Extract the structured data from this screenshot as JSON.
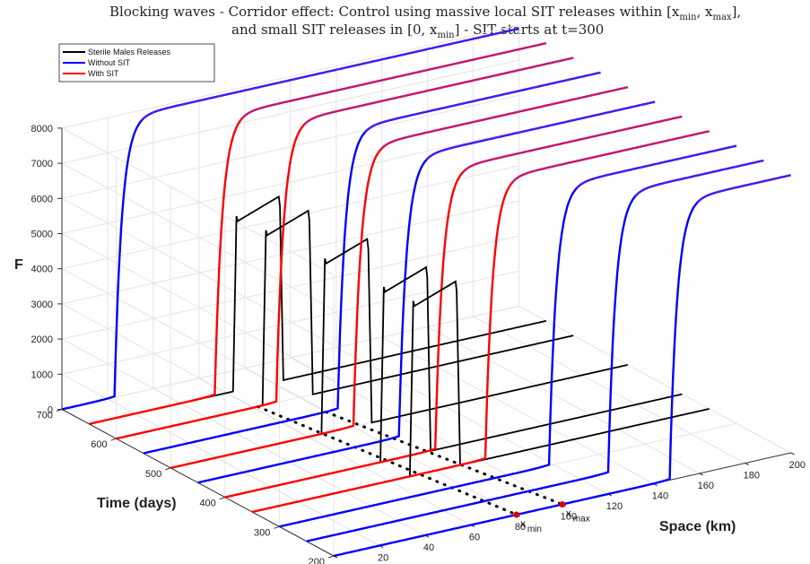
{
  "chart_data": {
    "type": "line",
    "title_line1": "Blocking waves - Corridor effect: Control using massive local SIT releases within [x",
    "title_line1_sub1": "min",
    "title_line1_mid": ", x",
    "title_line1_sub2": "max",
    "title_line1_end": "],",
    "title_line2": "and small SIT releases in [0, x",
    "title_line2_sub": "min",
    "title_line2_end": "] - SIT starts at t=300",
    "xlabel": "Space (km)",
    "ylabel": "Time (days)",
    "zlabel": "F",
    "xlim": [
      0,
      200
    ],
    "ylim": [
      200,
      700
    ],
    "zlim": [
      0,
      8000
    ],
    "xticks": [
      "0",
      "20",
      "40",
      "60",
      "80",
      "100",
      "120",
      "140",
      "160",
      "180",
      "200"
    ],
    "yticks": [
      "200",
      "300",
      "400",
      "500",
      "600",
      "700"
    ],
    "zticks": [
      "0",
      "1000",
      "2000",
      "3000",
      "4000",
      "5000",
      "6000",
      "7000",
      "8000"
    ],
    "legend": {
      "position": "top-left",
      "entries": [
        {
          "name": "Sterile Males Releases",
          "color": "#000000"
        },
        {
          "name": "Without SIT",
          "color": "#0000ff"
        },
        {
          "name": "With SIT",
          "color": "#ff0000"
        }
      ]
    },
    "markers": [
      {
        "label": "x",
        "sub": "min",
        "x": 80
      },
      {
        "label": "x",
        "sub": "max",
        "x": 100
      }
    ],
    "snapshots": [
      {
        "t": 700,
        "front_x": 23,
        "curve": "Without SIT",
        "release": false
      },
      {
        "t": 650,
        "front_x": 55,
        "curve": "With SIT",
        "release": true
      },
      {
        "t": 600,
        "front_x": 70,
        "curve": "With SIT",
        "release": true
      },
      {
        "t": 550,
        "front_x": 85,
        "curve": "Without SIT",
        "release": false
      },
      {
        "t": 500,
        "front_x": 80,
        "curve": "With SIT",
        "release": true
      },
      {
        "t": 450,
        "front_x": 88,
        "curve": "Without SIT",
        "release": false
      },
      {
        "t": 400,
        "front_x": 92,
        "curve": "With SIT",
        "release": true
      },
      {
        "t": 350,
        "front_x": 102,
        "curve": "With SIT",
        "release": true
      },
      {
        "t": 300,
        "front_x": 118,
        "curve": "Without SIT",
        "release": false
      },
      {
        "t": 250,
        "front_x": 132,
        "curve": "Without SIT",
        "release": false
      },
      {
        "t": 200,
        "front_x": 147,
        "curve": "Without SIT",
        "release": false
      }
    ],
    "plateau_F": 7900,
    "release_level_F": 5300
  }
}
